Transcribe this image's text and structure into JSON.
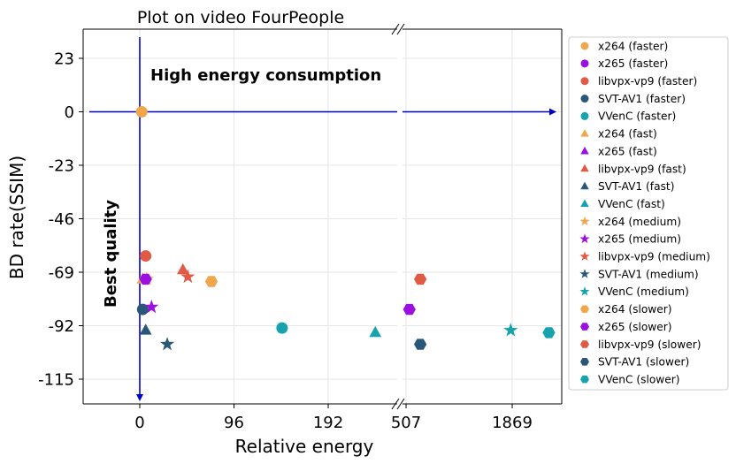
{
  "chart_data": {
    "type": "scatter",
    "title": "Plot on video FourPeople",
    "xlabel": "Relative energy",
    "ylabel": "BD rate(SSIM)",
    "annotations": {
      "top": "High energy consumption",
      "left": "Best quality"
    },
    "grid": true,
    "broken_x_axis": true,
    "legend_position": "right",
    "left_panel": {
      "xlim": [
        -60,
        260
      ],
      "xticks": [
        0,
        96,
        192
      ]
    },
    "right_panel": {
      "xlim": [
        507,
        2420
      ],
      "xticks": [
        507,
        1869
      ]
    },
    "ylim": [
      -125,
      35
    ],
    "yticks": [
      23,
      0,
      -23,
      -46,
      -69,
      -92,
      -115
    ],
    "series": [
      {
        "name": "x264 (faster)",
        "marker": "circle",
        "color": "#f0a64a",
        "points": [
          [
            2,
            0
          ]
        ]
      },
      {
        "name": "x265 (faster)",
        "marker": "circle",
        "color": "#9b0fdf",
        "points": []
      },
      {
        "name": "libvpx-vp9 (faster)",
        "marker": "circle",
        "color": "#e05a45",
        "points": [
          [
            6,
            -62
          ]
        ]
      },
      {
        "name": "SVT-AV1 (faster)",
        "marker": "circle",
        "color": "#2a5778",
        "points": [
          [
            3,
            -85
          ]
        ]
      },
      {
        "name": "VVenC (faster)",
        "marker": "circle",
        "color": "#16a3ad",
        "points": [
          [
            145,
            -93
          ]
        ]
      },
      {
        "name": "x264 (fast)",
        "marker": "triangle",
        "color": "#f0a64a",
        "points": [
          [
            3,
            -72
          ]
        ]
      },
      {
        "name": "x265 (fast)",
        "marker": "triangle",
        "color": "#9b0fdf",
        "points": []
      },
      {
        "name": "libvpx-vp9 (fast)",
        "marker": "triangle",
        "color": "#e05a45",
        "points": [
          [
            44,
            -68
          ]
        ]
      },
      {
        "name": "SVT-AV1 (fast)",
        "marker": "triangle",
        "color": "#2a5778",
        "points": [
          [
            6,
            -94
          ]
        ]
      },
      {
        "name": "VVenC (fast)",
        "marker": "triangle",
        "color": "#16a3ad",
        "points": [
          [
            240,
            -95
          ]
        ]
      },
      {
        "name": "x264 (medium)",
        "marker": "star",
        "color": "#f0a64a",
        "points": [
          [
            7,
            -72
          ]
        ]
      },
      {
        "name": "x265 (medium)",
        "marker": "star",
        "color": "#9b0fdf",
        "points": [
          [
            12,
            -84
          ]
        ]
      },
      {
        "name": "libvpx-vp9 (medium)",
        "marker": "star",
        "color": "#e05a45",
        "points": [
          [
            49,
            -71
          ]
        ]
      },
      {
        "name": "SVT-AV1 (medium)",
        "marker": "star",
        "color": "#2a5778",
        "points": [
          [
            28,
            -100
          ]
        ]
      },
      {
        "name": "VVenC (medium)",
        "marker": "star",
        "color": "#16a3ad",
        "points": [
          [
            1850,
            -94
          ]
        ]
      },
      {
        "name": "x264 (slower)",
        "marker": "hexagon",
        "color": "#f0a64a",
        "points": [
          [
            73,
            -73
          ]
        ]
      },
      {
        "name": "x265 (slower)",
        "marker": "hexagon",
        "color": "#9b0fdf",
        "points": [
          [
            6,
            -72
          ],
          [
            550,
            -85
          ]
        ]
      },
      {
        "name": "libvpx-vp9 (slower)",
        "marker": "hexagon",
        "color": "#e05a45",
        "points": [
          [
            690,
            -72
          ]
        ]
      },
      {
        "name": "SVT-AV1 (slower)",
        "marker": "hexagon",
        "color": "#2a5778",
        "points": [
          [
            690,
            -100
          ]
        ]
      },
      {
        "name": "VVenC (slower)",
        "marker": "hexagon",
        "color": "#16a3ad",
        "points": [
          [
            2340,
            -95
          ]
        ]
      }
    ]
  }
}
